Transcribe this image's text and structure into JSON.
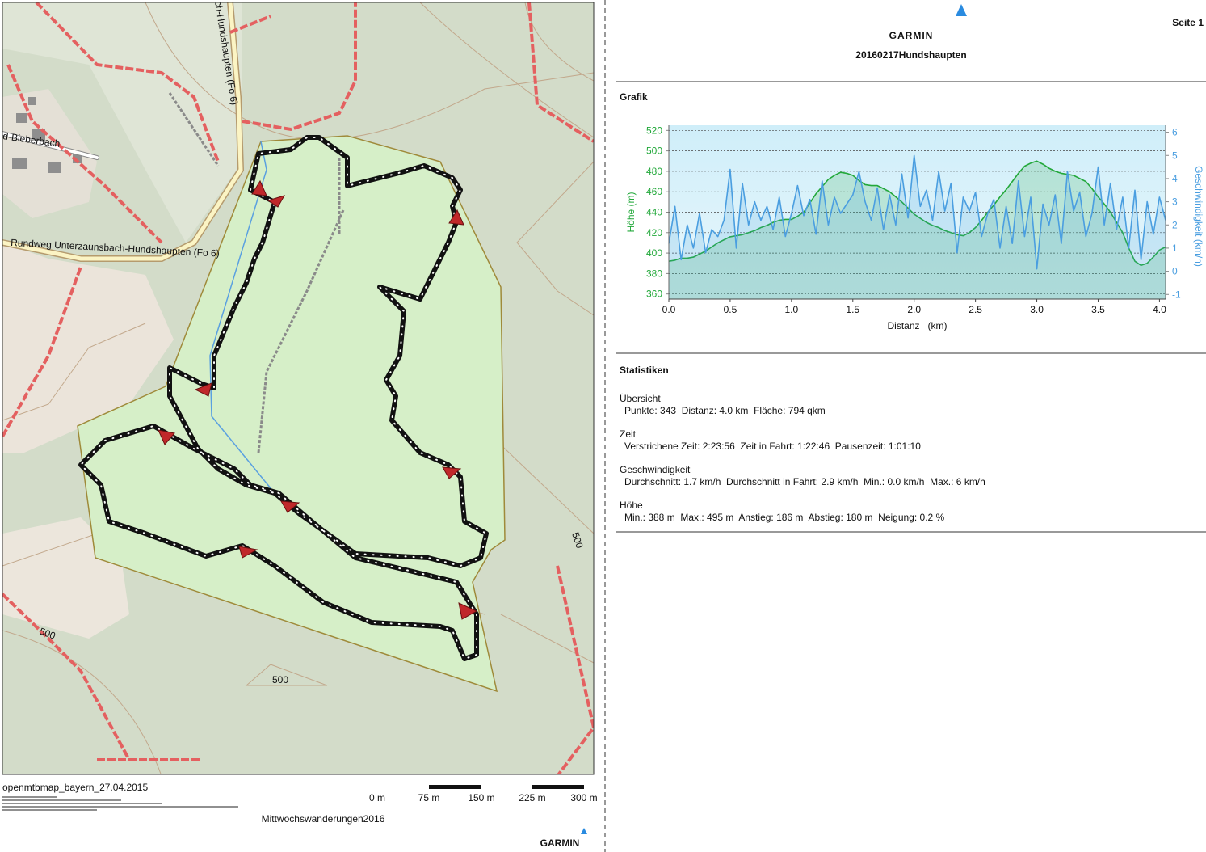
{
  "header": {
    "logo": "GARMIN",
    "title": "20160217Hundshaupten",
    "page": "Seite 1"
  },
  "sections": {
    "graph": "Grafik",
    "statistics": "Statistiken"
  },
  "map": {
    "labels": [
      "d-Bieberbach",
      "ch-Hundshaupten (Fo 6)",
      "Rundweg Unterzaunsbach-Hundshaupten (Fo 6)",
      "500",
      "500",
      "500"
    ],
    "source": "openmtbmap_bayern_27.04.2015",
    "scale_labels": [
      "0 m",
      "75 m",
      "150 m",
      "225 m",
      "300 m"
    ],
    "title": "Mittwochswanderungen2016",
    "logo": "GARMIN"
  },
  "chart_data": {
    "type": "line",
    "x_label": "Distanz   (km)",
    "y_label": "Höhe (m)",
    "y2_label": "Geschwindigkeit (km/h)",
    "x": [
      0,
      0.05,
      0.1,
      0.15,
      0.2,
      0.25,
      0.3,
      0.35,
      0.4,
      0.45,
      0.5,
      0.55,
      0.6,
      0.65,
      0.7,
      0.75,
      0.8,
      0.85,
      0.9,
      0.95,
      1.0,
      1.05,
      1.1,
      1.15,
      1.2,
      1.25,
      1.3,
      1.35,
      1.4,
      1.45,
      1.5,
      1.55,
      1.6,
      1.65,
      1.7,
      1.75,
      1.8,
      1.85,
      1.9,
      1.95,
      2.0,
      2.05,
      2.1,
      2.15,
      2.2,
      2.25,
      2.3,
      2.35,
      2.4,
      2.45,
      2.5,
      2.55,
      2.6,
      2.65,
      2.7,
      2.75,
      2.8,
      2.85,
      2.9,
      2.95,
      3.0,
      3.05,
      3.1,
      3.15,
      3.2,
      3.25,
      3.3,
      3.35,
      3.4,
      3.45,
      3.5,
      3.55,
      3.6,
      3.65,
      3.7,
      3.75,
      3.8,
      3.85,
      3.9,
      3.95,
      4.0,
      4.05
    ],
    "series": [
      {
        "name": "Höhe",
        "color": "#22a83a",
        "values": [
          392,
          393,
          395,
          395,
          396,
          399,
          402,
          406,
          410,
          413,
          416,
          417,
          418,
          420,
          422,
          425,
          427,
          430,
          432,
          433,
          433,
          436,
          440,
          449,
          458,
          465,
          472,
          476,
          479,
          478,
          476,
          471,
          467,
          466,
          466,
          463,
          460,
          455,
          450,
          444,
          438,
          434,
          430,
          427,
          425,
          422,
          420,
          418,
          417,
          420,
          425,
          432,
          440,
          447,
          455,
          462,
          470,
          478,
          485,
          488,
          490,
          487,
          483,
          480,
          478,
          477,
          476,
          473,
          470,
          463,
          455,
          448,
          440,
          430,
          420,
          405,
          392,
          388,
          390,
          396,
          403,
          406
        ]
      },
      {
        "name": "Geschwindigkeit",
        "color": "#4a9ee0",
        "axis": "y2",
        "values": [
          1.2,
          2.8,
          0.5,
          2.0,
          1.0,
          2.5,
          0.8,
          1.8,
          1.5,
          2.2,
          4.4,
          1.0,
          3.8,
          2.0,
          3.0,
          2.2,
          2.8,
          1.8,
          3.2,
          1.5,
          2.5,
          3.7,
          2.4,
          3.1,
          1.6,
          3.9,
          2.0,
          3.2,
          2.5,
          2.9,
          3.3,
          4.3,
          3.0,
          2.2,
          3.6,
          1.8,
          3.3,
          2.0,
          4.2,
          2.3,
          5.0,
          2.8,
          3.5,
          2.2,
          4.3,
          2.6,
          3.8,
          0.8,
          3.2,
          2.6,
          3.4,
          1.5,
          2.5,
          3.1,
          1.0,
          2.8,
          1.2,
          3.9,
          1.5,
          3.2,
          0.1,
          2.9,
          2.0,
          3.3,
          1.2,
          4.3,
          2.6,
          3.4,
          1.5,
          2.5,
          4.5,
          2.0,
          3.8,
          1.8,
          3.2,
          1.0,
          3.5,
          0.5,
          3.0,
          1.6,
          3.2,
          2.2
        ]
      }
    ],
    "xlim": [
      0,
      4.05
    ],
    "xticks": [
      {
        "value": 0,
        "label": "0.0"
      },
      0.5,
      {
        "value": 1,
        "label": "1.0"
      },
      1.5,
      {
        "value": 2,
        "label": "2.0"
      },
      2.5,
      {
        "value": 3,
        "label": "3.0"
      },
      3.5,
      {
        "value": 4,
        "label": "4.0"
      }
    ],
    "ylim": [
      355,
      525
    ],
    "yticks": [
      360,
      380,
      400,
      420,
      440,
      460,
      480,
      500,
      520
    ],
    "y2lim": [
      -1.2,
      6.3
    ],
    "y2ticks": [
      -1,
      0,
      1,
      2,
      3,
      4,
      5,
      6
    ],
    "grid": true
  },
  "statistics": [
    {
      "heading": "Übersicht",
      "text": "Punkte: 343  Distanz: 4.0 km  Fläche: 794 qkm"
    },
    {
      "heading": "Zeit",
      "text": "Verstrichene Zeit: 2:23:56  Zeit in Fahrt: 1:22:46  Pausenzeit: 1:01:10"
    },
    {
      "heading": "Geschwindigkeit",
      "text": "Durchschnitt: 1.7 km/h  Durchschnitt in Fahrt: 2.9 km/h  Min.: 0.0 km/h  Max.: 6 km/h"
    },
    {
      "heading": "Höhe",
      "text": "Min.: 388 m  Max.: 495 m  Anstieg: 186 m  Abstieg: 180 m  Neigung: 0.2 %"
    }
  ]
}
